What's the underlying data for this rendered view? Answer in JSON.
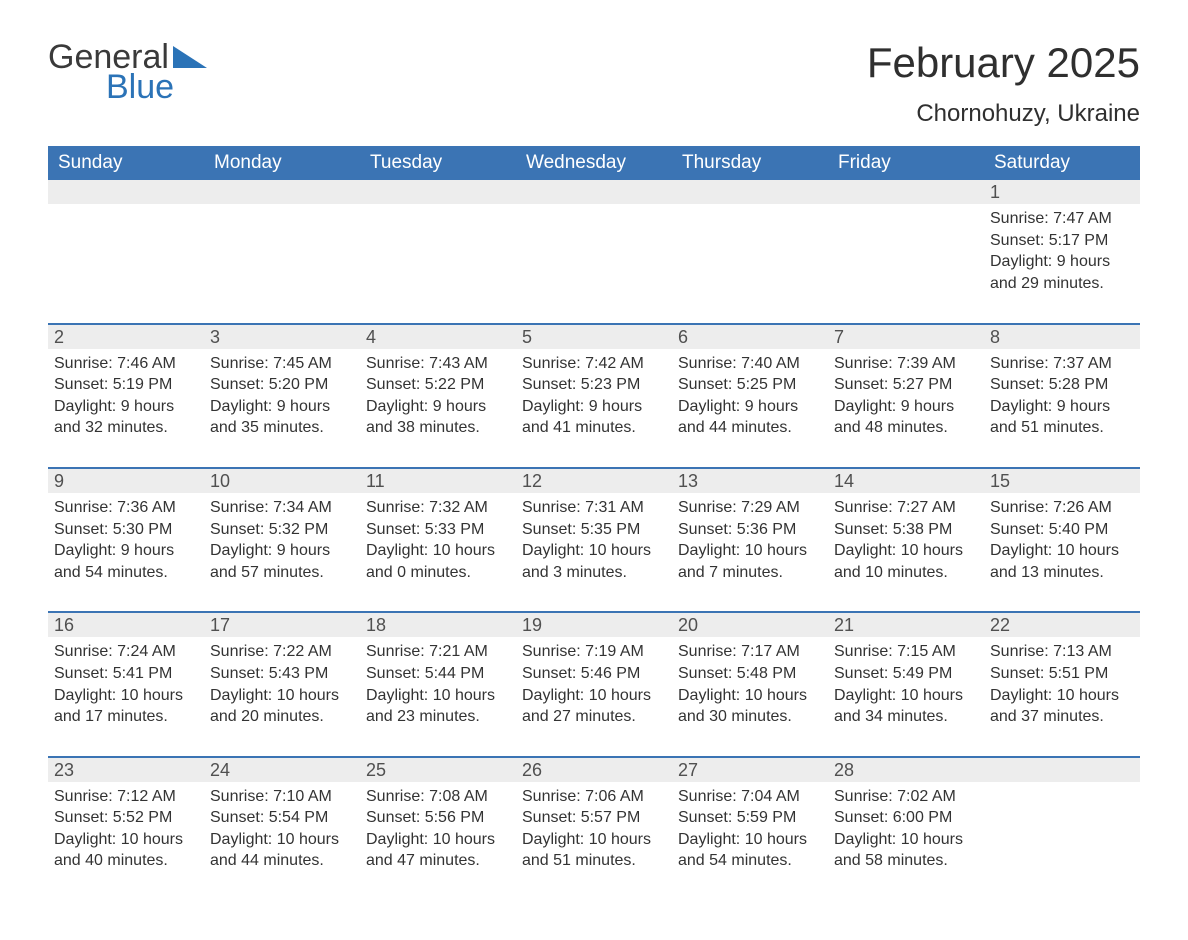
{
  "brand": {
    "word1": "General",
    "word2": "Blue"
  },
  "title": {
    "month": "February 2025",
    "location": "Chornohuzy, Ukraine"
  },
  "colors": {
    "header_bg": "#3b74b4",
    "header_text": "#ffffff",
    "band_bg": "#ededed",
    "rule": "#3b74b4",
    "brand_blue": "#2b73b7",
    "text": "#333333"
  },
  "weekdays": [
    "Sunday",
    "Monday",
    "Tuesday",
    "Wednesday",
    "Thursday",
    "Friday",
    "Saturday"
  ],
  "weeks": [
    [
      null,
      null,
      null,
      null,
      null,
      null,
      {
        "n": "1",
        "sr": "Sunrise: 7:47 AM",
        "ss": "Sunset: 5:17 PM",
        "d1": "Daylight: 9 hours",
        "d2": "and 29 minutes."
      }
    ],
    [
      {
        "n": "2",
        "sr": "Sunrise: 7:46 AM",
        "ss": "Sunset: 5:19 PM",
        "d1": "Daylight: 9 hours",
        "d2": "and 32 minutes."
      },
      {
        "n": "3",
        "sr": "Sunrise: 7:45 AM",
        "ss": "Sunset: 5:20 PM",
        "d1": "Daylight: 9 hours",
        "d2": "and 35 minutes."
      },
      {
        "n": "4",
        "sr": "Sunrise: 7:43 AM",
        "ss": "Sunset: 5:22 PM",
        "d1": "Daylight: 9 hours",
        "d2": "and 38 minutes."
      },
      {
        "n": "5",
        "sr": "Sunrise: 7:42 AM",
        "ss": "Sunset: 5:23 PM",
        "d1": "Daylight: 9 hours",
        "d2": "and 41 minutes."
      },
      {
        "n": "6",
        "sr": "Sunrise: 7:40 AM",
        "ss": "Sunset: 5:25 PM",
        "d1": "Daylight: 9 hours",
        "d2": "and 44 minutes."
      },
      {
        "n": "7",
        "sr": "Sunrise: 7:39 AM",
        "ss": "Sunset: 5:27 PM",
        "d1": "Daylight: 9 hours",
        "d2": "and 48 minutes."
      },
      {
        "n": "8",
        "sr": "Sunrise: 7:37 AM",
        "ss": "Sunset: 5:28 PM",
        "d1": "Daylight: 9 hours",
        "d2": "and 51 minutes."
      }
    ],
    [
      {
        "n": "9",
        "sr": "Sunrise: 7:36 AM",
        "ss": "Sunset: 5:30 PM",
        "d1": "Daylight: 9 hours",
        "d2": "and 54 minutes."
      },
      {
        "n": "10",
        "sr": "Sunrise: 7:34 AM",
        "ss": "Sunset: 5:32 PM",
        "d1": "Daylight: 9 hours",
        "d2": "and 57 minutes."
      },
      {
        "n": "11",
        "sr": "Sunrise: 7:32 AM",
        "ss": "Sunset: 5:33 PM",
        "d1": "Daylight: 10 hours",
        "d2": "and 0 minutes."
      },
      {
        "n": "12",
        "sr": "Sunrise: 7:31 AM",
        "ss": "Sunset: 5:35 PM",
        "d1": "Daylight: 10 hours",
        "d2": "and 3 minutes."
      },
      {
        "n": "13",
        "sr": "Sunrise: 7:29 AM",
        "ss": "Sunset: 5:36 PM",
        "d1": "Daylight: 10 hours",
        "d2": "and 7 minutes."
      },
      {
        "n": "14",
        "sr": "Sunrise: 7:27 AM",
        "ss": "Sunset: 5:38 PM",
        "d1": "Daylight: 10 hours",
        "d2": "and 10 minutes."
      },
      {
        "n": "15",
        "sr": "Sunrise: 7:26 AM",
        "ss": "Sunset: 5:40 PM",
        "d1": "Daylight: 10 hours",
        "d2": "and 13 minutes."
      }
    ],
    [
      {
        "n": "16",
        "sr": "Sunrise: 7:24 AM",
        "ss": "Sunset: 5:41 PM",
        "d1": "Daylight: 10 hours",
        "d2": "and 17 minutes."
      },
      {
        "n": "17",
        "sr": "Sunrise: 7:22 AM",
        "ss": "Sunset: 5:43 PM",
        "d1": "Daylight: 10 hours",
        "d2": "and 20 minutes."
      },
      {
        "n": "18",
        "sr": "Sunrise: 7:21 AM",
        "ss": "Sunset: 5:44 PM",
        "d1": "Daylight: 10 hours",
        "d2": "and 23 minutes."
      },
      {
        "n": "19",
        "sr": "Sunrise: 7:19 AM",
        "ss": "Sunset: 5:46 PM",
        "d1": "Daylight: 10 hours",
        "d2": "and 27 minutes."
      },
      {
        "n": "20",
        "sr": "Sunrise: 7:17 AM",
        "ss": "Sunset: 5:48 PM",
        "d1": "Daylight: 10 hours",
        "d2": "and 30 minutes."
      },
      {
        "n": "21",
        "sr": "Sunrise: 7:15 AM",
        "ss": "Sunset: 5:49 PM",
        "d1": "Daylight: 10 hours",
        "d2": "and 34 minutes."
      },
      {
        "n": "22",
        "sr": "Sunrise: 7:13 AM",
        "ss": "Sunset: 5:51 PM",
        "d1": "Daylight: 10 hours",
        "d2": "and 37 minutes."
      }
    ],
    [
      {
        "n": "23",
        "sr": "Sunrise: 7:12 AM",
        "ss": "Sunset: 5:52 PM",
        "d1": "Daylight: 10 hours",
        "d2": "and 40 minutes."
      },
      {
        "n": "24",
        "sr": "Sunrise: 7:10 AM",
        "ss": "Sunset: 5:54 PM",
        "d1": "Daylight: 10 hours",
        "d2": "and 44 minutes."
      },
      {
        "n": "25",
        "sr": "Sunrise: 7:08 AM",
        "ss": "Sunset: 5:56 PM",
        "d1": "Daylight: 10 hours",
        "d2": "and 47 minutes."
      },
      {
        "n": "26",
        "sr": "Sunrise: 7:06 AM",
        "ss": "Sunset: 5:57 PM",
        "d1": "Daylight: 10 hours",
        "d2": "and 51 minutes."
      },
      {
        "n": "27",
        "sr": "Sunrise: 7:04 AM",
        "ss": "Sunset: 5:59 PM",
        "d1": "Daylight: 10 hours",
        "d2": "and 54 minutes."
      },
      {
        "n": "28",
        "sr": "Sunrise: 7:02 AM",
        "ss": "Sunset: 6:00 PM",
        "d1": "Daylight: 10 hours",
        "d2": "and 58 minutes."
      },
      null
    ]
  ]
}
